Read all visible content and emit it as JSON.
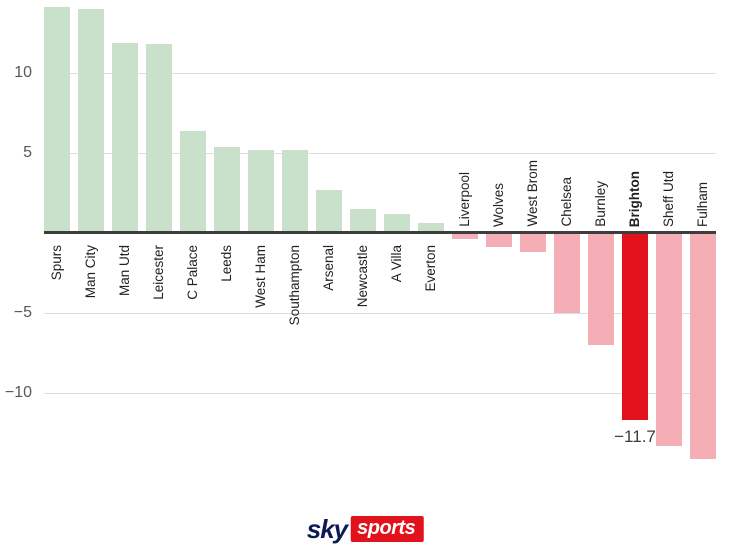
{
  "chart_data": {
    "type": "bar",
    "title": "",
    "xlabel": "",
    "ylabel": "",
    "categories": [
      "Spurs",
      "Man City",
      "Man Utd",
      "Leicester",
      "C Palace",
      "Leeds",
      "West Ham",
      "Southampton",
      "Arsenal",
      "Newcastle",
      "A Villa",
      "Everton",
      "Liverpool",
      "Wolves",
      "West Brom",
      "Chelsea",
      "Burnley",
      "Brighton",
      "Sheff Utd",
      "Fulham"
    ],
    "values": [
      14.1,
      14.0,
      11.9,
      11.8,
      6.4,
      5.4,
      5.2,
      5.2,
      2.7,
      1.5,
      1.2,
      0.6,
      -0.4,
      -0.9,
      -1.2,
      -5.0,
      -7.0,
      -11.7,
      -13.3,
      -14.1
    ],
    "highlight_category": "Brighton",
    "annotation": {
      "category": "Brighton",
      "text": "−11.7"
    },
    "y_ticks": [
      {
        "value": 10,
        "label": "10"
      },
      {
        "value": 5,
        "label": "5"
      },
      {
        "value": -5,
        "label": "−5"
      },
      {
        "value": -10,
        "label": "−10"
      }
    ],
    "ylim": [
      -14.5,
      14.5
    ],
    "grid": true,
    "legend": "none",
    "colors": {
      "positive": "#c9e0ca",
      "negative": "#f5aeb5",
      "highlight": "#e1121b",
      "axis": "#3d3d3d",
      "gridline": "#dcdcdc",
      "tick_label": "#595959",
      "bar_label": "#222222",
      "annotation": "#3d3d3d"
    }
  },
  "footer": {
    "sky_label": "sky",
    "sports_label": "sports",
    "sky_color": "#0e1b52",
    "sports_bg": "#e1121b",
    "sports_color": "#ffffff"
  }
}
